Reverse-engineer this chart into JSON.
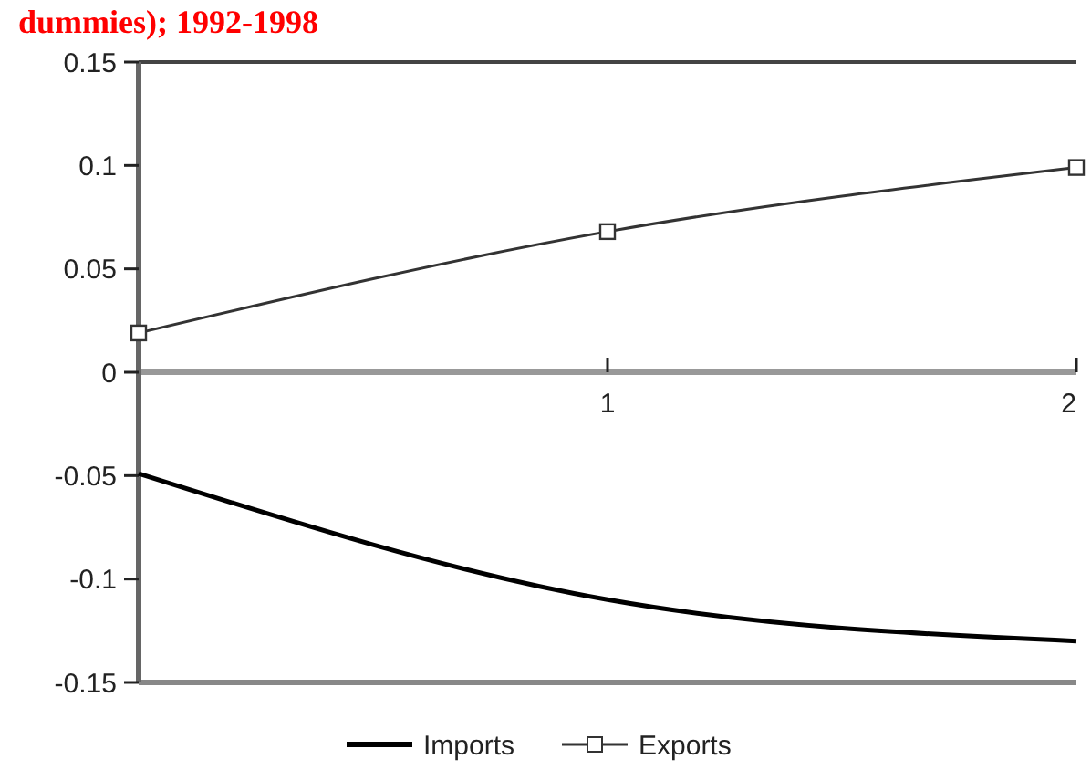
{
  "chart_data": {
    "type": "line",
    "title": "dummies); 1992-1998",
    "xlim": [
      0,
      2
    ],
    "xticks": [
      1,
      2
    ],
    "ylim": [
      -0.15,
      0.15
    ],
    "yticks": [
      0.15,
      0.1,
      0.05,
      0,
      -0.05,
      -0.1,
      -0.15
    ],
    "x": [
      0,
      1,
      2
    ],
    "legend": "bottom",
    "grid": false,
    "series": [
      {
        "name": "Imports",
        "color": "#000000",
        "values": [
          -0.049,
          -0.11,
          -0.13
        ],
        "marker": "none"
      },
      {
        "name": "Exports",
        "color": "#333333",
        "values": [
          0.019,
          0.068,
          0.099
        ],
        "marker": "square"
      }
    ]
  }
}
